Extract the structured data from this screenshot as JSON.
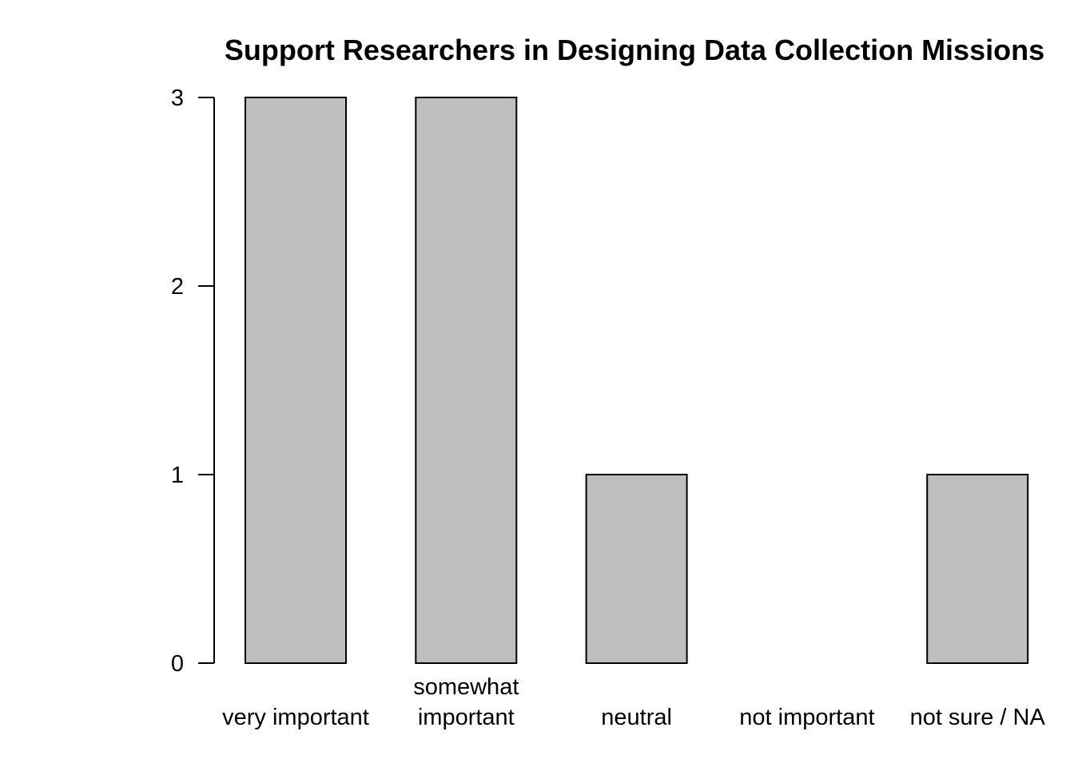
{
  "chart_data": {
    "type": "bar",
    "title": "Support Researchers in Designing Data Collection Missions",
    "xlabel": "",
    "ylabel": "",
    "categories": [
      [
        "very important"
      ],
      [
        "somewhat",
        "important"
      ],
      [
        "neutral"
      ],
      [
        "not important"
      ],
      [
        "not sure / NA"
      ]
    ],
    "values": [
      3,
      3,
      1,
      0,
      1
    ],
    "yticks": [
      0,
      1,
      2,
      3
    ],
    "ylim": [
      0,
      3
    ],
    "grid": false,
    "legend": "none",
    "colors": {
      "bar_fill": "#bebebe",
      "bar_stroke": "#000000",
      "axis": "#000000",
      "text": "#000000"
    }
  }
}
